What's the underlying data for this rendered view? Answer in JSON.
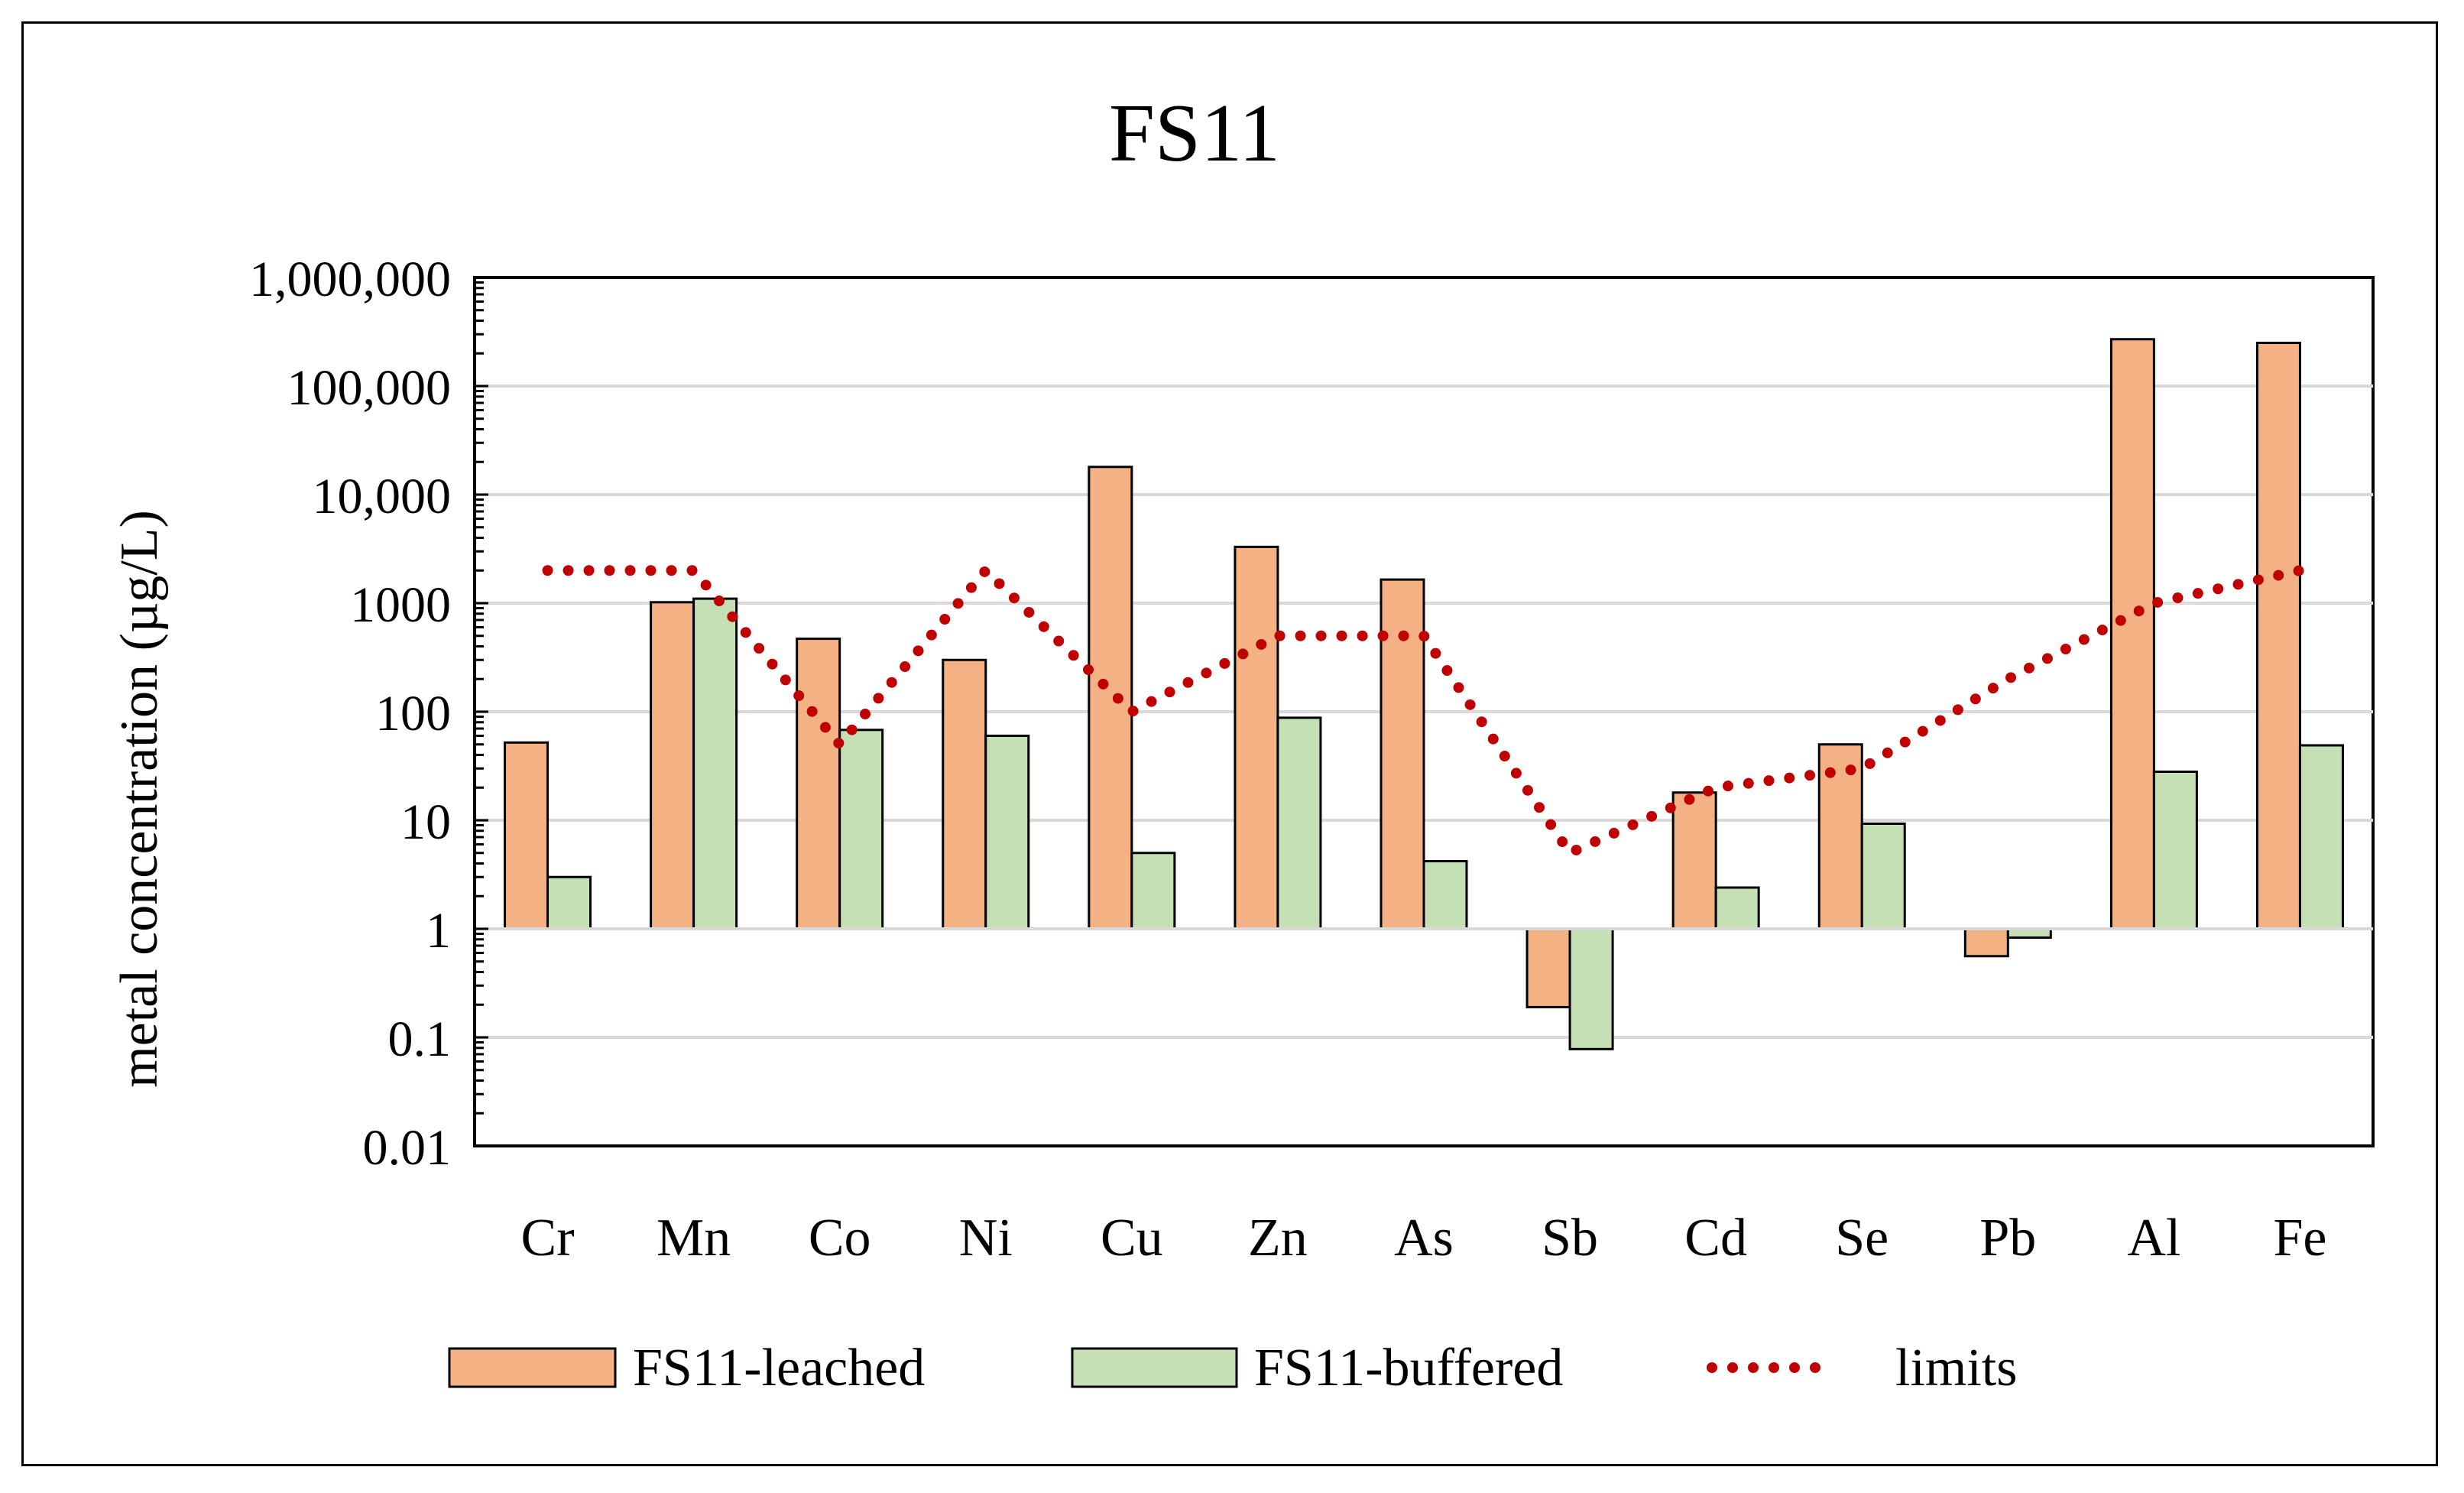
{
  "chart_data": {
    "type": "bar",
    "title": "FS11",
    "xlabel": "",
    "ylabel": "metal concentration (µg/L)",
    "yscale": "log",
    "ylim": [
      0.01,
      1000000
    ],
    "baseline": 1,
    "yticks": [
      {
        "value": 0.01,
        "label": "0.01"
      },
      {
        "value": 0.1,
        "label": "0.1"
      },
      {
        "value": 1,
        "label": "1"
      },
      {
        "value": 10,
        "label": "10"
      },
      {
        "value": 100,
        "label": "100"
      },
      {
        "value": 1000,
        "label": "1000"
      },
      {
        "value": 10000,
        "label": "10,000"
      },
      {
        "value": 100000,
        "label": "100,000"
      },
      {
        "value": 1000000,
        "label": "1,000,000"
      }
    ],
    "grid": true,
    "categories": [
      "Cr",
      "Mn",
      "Co",
      "Ni",
      "Cu",
      "Zn",
      "As",
      "Sb",
      "Cd",
      "Se",
      "Pb",
      "Al",
      "Fe"
    ],
    "series": [
      {
        "name": "FS11-leached",
        "kind": "bar",
        "color": "#F4B183",
        "values": [
          52,
          1020,
          470,
          300,
          18000,
          3300,
          1650,
          0.19,
          18,
          50,
          0.56,
          270000,
          250000
        ]
      },
      {
        "name": "FS11-buffered",
        "kind": "bar",
        "color": "#C5E0B4",
        "values": [
          3,
          1100,
          68,
          60,
          5,
          88,
          4.2,
          0.078,
          2.4,
          9.3,
          0.83,
          28,
          49
        ]
      },
      {
        "name": "limits",
        "kind": "line",
        "style": "dotted",
        "color": "#C00000",
        "values": [
          2000,
          2000,
          50,
          2000,
          100,
          500,
          500,
          5,
          20,
          30,
          200,
          1000,
          2000
        ]
      }
    ],
    "legend_position": "bottom"
  }
}
